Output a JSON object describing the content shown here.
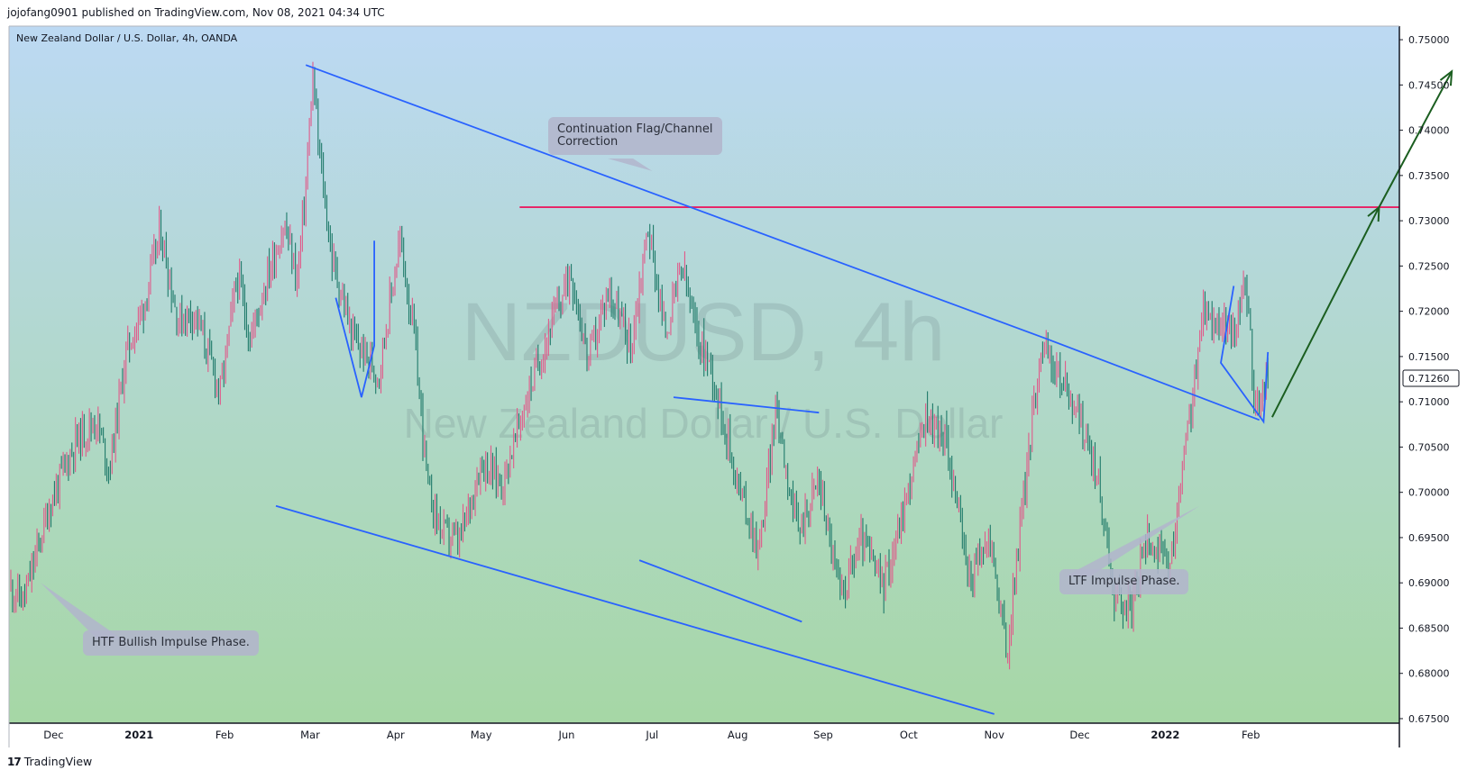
{
  "header": {
    "publisher_line": "jojofang0901 published on TradingView.com, Nov 08, 2021 04:34 UTC"
  },
  "footer": {
    "logo_glyph": "17",
    "brand": "TradingView"
  },
  "colors": {
    "bg_top": "#bcd9f3",
    "bg_bottom": "#a6d7a5",
    "trendline": "#2962ff",
    "resistance": "#e91e63",
    "arrow": "#1b5e20",
    "candle_up": "#e05a8a",
    "candle_down": "#1f7a6a",
    "price_badge": "#131722"
  },
  "chart_data": {
    "type": "candlestick",
    "title": "New Zealand Dollar / U.S. Dollar, 4h, OANDA",
    "watermark_symbol": "NZDUSD, 4h",
    "watermark_name": "New Zealand Dollar / U.S. Dollar",
    "ylim": [
      0.6745,
      0.7515
    ],
    "y_ticks": [
      "0.75000",
      "0.74500",
      "0.74000",
      "0.73500",
      "0.73000",
      "0.72500",
      "0.72000",
      "0.71500",
      "0.71000",
      "0.70500",
      "0.70000",
      "0.69500",
      "0.69000",
      "0.68500",
      "0.68000",
      "0.67500"
    ],
    "x_ticks": [
      {
        "label": "Dec",
        "t": 0.5,
        "bold": false
      },
      {
        "label": "2021",
        "t": 1.5,
        "bold": true
      },
      {
        "label": "Feb",
        "t": 2.5,
        "bold": false
      },
      {
        "label": "Mar",
        "t": 3.5,
        "bold": false
      },
      {
        "label": "Apr",
        "t": 4.5,
        "bold": false
      },
      {
        "label": "May",
        "t": 5.5,
        "bold": false
      },
      {
        "label": "Jun",
        "t": 6.5,
        "bold": false
      },
      {
        "label": "Jul",
        "t": 7.5,
        "bold": false
      },
      {
        "label": "Aug",
        "t": 8.5,
        "bold": false
      },
      {
        "label": "Sep",
        "t": 9.5,
        "bold": false
      },
      {
        "label": "Oct",
        "t": 10.5,
        "bold": false
      },
      {
        "label": "Nov",
        "t": 11.5,
        "bold": false
      },
      {
        "label": "Dec",
        "t": 12.5,
        "bold": false
      },
      {
        "label": "2022",
        "t": 13.5,
        "bold": true
      },
      {
        "label": "Feb",
        "t": 14.5,
        "bold": false
      }
    ],
    "last_price": "0.71260",
    "last_price_value": 0.7126,
    "price_path": [
      [
        0.0,
        0.6895
      ],
      [
        0.15,
        0.688
      ],
      [
        0.45,
        0.6985
      ],
      [
        0.75,
        0.7055
      ],
      [
        1.0,
        0.708
      ],
      [
        1.15,
        0.7025
      ],
      [
        1.35,
        0.7155
      ],
      [
        1.55,
        0.7205
      ],
      [
        1.68,
        0.726
      ],
      [
        1.75,
        0.729
      ],
      [
        1.95,
        0.719
      ],
      [
        2.15,
        0.72
      ],
      [
        2.45,
        0.711
      ],
      [
        2.65,
        0.724
      ],
      [
        2.8,
        0.717
      ],
      [
        3.0,
        0.724
      ],
      [
        3.2,
        0.7295
      ],
      [
        3.35,
        0.7235
      ],
      [
        3.45,
        0.734
      ],
      [
        3.53,
        0.746
      ],
      [
        3.6,
        0.738
      ],
      [
        3.75,
        0.726
      ],
      [
        4.0,
        0.717
      ],
      [
        4.3,
        0.713
      ],
      [
        4.55,
        0.728
      ],
      [
        4.72,
        0.717
      ],
      [
        4.88,
        0.7
      ],
      [
        5.05,
        0.6955
      ],
      [
        5.25,
        0.6945
      ],
      [
        5.5,
        0.7035
      ],
      [
        5.75,
        0.701
      ],
      [
        6.05,
        0.711
      ],
      [
        6.3,
        0.718
      ],
      [
        6.55,
        0.7245
      ],
      [
        6.75,
        0.7145
      ],
      [
        7.0,
        0.7225
      ],
      [
        7.25,
        0.716
      ],
      [
        7.45,
        0.7295
      ],
      [
        7.65,
        0.7175
      ],
      [
        7.85,
        0.725
      ],
      [
        8.0,
        0.718
      ],
      [
        8.2,
        0.7135
      ],
      [
        8.5,
        0.701
      ],
      [
        8.75,
        0.6935
      ],
      [
        8.95,
        0.7095
      ],
      [
        9.2,
        0.6955
      ],
      [
        9.45,
        0.7015
      ],
      [
        9.7,
        0.6885
      ],
      [
        9.95,
        0.695
      ],
      [
        10.2,
        0.6895
      ],
      [
        10.45,
        0.6985
      ],
      [
        10.7,
        0.7085
      ],
      [
        10.95,
        0.7055
      ],
      [
        11.2,
        0.6905
      ],
      [
        11.45,
        0.695
      ],
      [
        11.65,
        0.682
      ],
      [
        11.8,
        0.696
      ],
      [
        12.05,
        0.7165
      ],
      [
        12.25,
        0.713
      ],
      [
        12.45,
        0.7095
      ],
      [
        12.7,
        0.702
      ],
      [
        12.9,
        0.689
      ],
      [
        13.1,
        0.687
      ],
      [
        13.3,
        0.6955
      ],
      [
        13.55,
        0.691
      ],
      [
        13.75,
        0.706
      ],
      [
        13.95,
        0.72
      ],
      [
        14.1,
        0.719
      ],
      [
        14.3,
        0.7175
      ],
      [
        14.45,
        0.723
      ],
      [
        14.55,
        0.7085
      ],
      [
        14.7,
        0.7126
      ]
    ],
    "t_range": [
      0.0,
      15.9
    ],
    "x_positions_note": "t = months since start of November 2020 (data units)",
    "drawings": {
      "resistance_level": 0.7315,
      "channel_upper": [
        [
          3.45,
          0.7472
        ],
        [
          12.1,
          0.717
        ],
        [
          14.6,
          0.708
        ]
      ],
      "channel_lower": [
        [
          3.1,
          0.6985
        ],
        [
          11.5,
          0.6755
        ]
      ],
      "flag_left": [
        [
          3.8,
          0.7215
        ],
        [
          4.1,
          0.7105
        ],
        [
          4.25,
          0.7162
        ],
        [
          4.25,
          0.7278
        ]
      ],
      "triangle_top": [
        [
          7.75,
          0.7105
        ],
        [
          9.45,
          0.7088
        ]
      ],
      "triangle_bottom": [
        [
          7.35,
          0.6925
        ],
        [
          9.25,
          0.6857
        ]
      ],
      "wedge_right": [
        [
          14.3,
          0.7228
        ],
        [
          14.15,
          0.7143
        ],
        [
          14.65,
          0.7078
        ],
        [
          14.7,
          0.7155
        ]
      ],
      "projection_arrow": [
        [
          14.75,
          0.7083
        ],
        [
          16.0,
          0.7315
        ],
        [
          16.85,
          0.7465
        ]
      ]
    },
    "annotations": [
      {
        "id": "htf",
        "text": "HTF Bullish Impulse Phase.",
        "pointer_to": [
          0.35,
          0.69
        ]
      },
      {
        "id": "flag",
        "text": "Continuation Flag/Channel\nCorrection",
        "pointer_to": [
          7.5,
          0.7355
        ]
      },
      {
        "id": "ltf",
        "text": "LTF Impulse Phase.",
        "pointer_to": [
          13.9,
          0.6985
        ]
      }
    ]
  }
}
